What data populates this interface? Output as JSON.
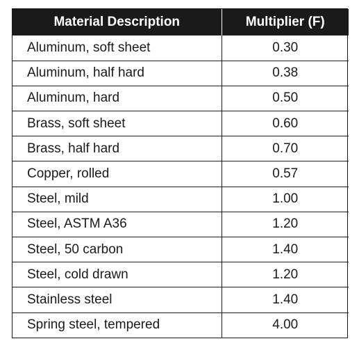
{
  "table": {
    "headers": [
      "Material Description",
      "Multiplier (F)"
    ],
    "rows": [
      [
        "Aluminum, soft sheet",
        "0.30"
      ],
      [
        "Aluminum, half hard",
        "0.38"
      ],
      [
        "Aluminum, hard",
        "0.50"
      ],
      [
        "Brass, soft sheet",
        "0.60"
      ],
      [
        "Brass, half hard",
        "0.70"
      ],
      [
        "Copper, rolled",
        "0.57"
      ],
      [
        "Steel, mild",
        "1.00"
      ],
      [
        "Steel, ASTM A36",
        "1.20"
      ],
      [
        "Steel, 50 carbon",
        "1.40"
      ],
      [
        "Steel, cold drawn",
        "1.20"
      ],
      [
        "Stainless steel",
        "1.40"
      ],
      [
        "Spring steel, tempered",
        "4.00"
      ]
    ]
  },
  "colors": {
    "header_background": "#1a1a1a",
    "header_text": "#ffffff",
    "body_text": "#1a1a1a",
    "border": "#1a1a1a"
  }
}
